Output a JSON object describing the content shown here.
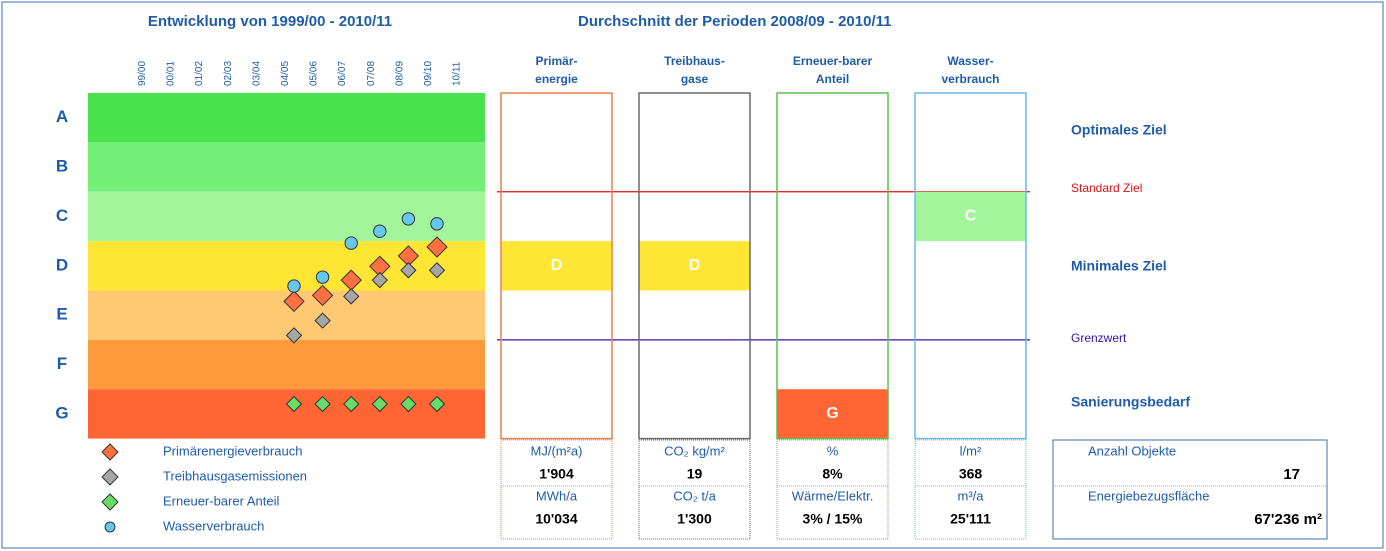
{
  "left_chart": {
    "type": "scatter",
    "title": "Entwicklung von 1999/00 - 2010/11",
    "categories": [
      "99/00",
      "00/01",
      "01/02",
      "02/03",
      "03/04",
      "04/05",
      "05/06",
      "06/07",
      "07/08",
      "08/09",
      "09/10",
      "10/11"
    ],
    "grades": [
      "A",
      "B",
      "C",
      "D",
      "E",
      "F",
      "G"
    ],
    "grade_colors": [
      "#49e24e",
      "#73ef78",
      "#a3f59b",
      "#ffe634",
      "#ffc873",
      "#ff9a3c",
      "#ff6633"
    ],
    "ylim": [
      0.5,
      7.5
    ],
    "series": [
      {
        "name": "Primärenergieverbrauch",
        "color": "#ff6f3f",
        "marker": "diamond",
        "values": [
          null,
          null,
          null,
          null,
          null,
          null,
          4.72,
          4.6,
          4.29,
          4.01,
          3.8,
          3.62
        ]
      },
      {
        "name": "Treibhausgasemissionen",
        "color": "#a6a6a6",
        "marker": "diamond",
        "values": [
          null,
          null,
          null,
          null,
          null,
          null,
          5.41,
          5.11,
          4.62,
          4.29,
          4.09,
          4.09
        ]
      },
      {
        "name": "Erneuer-barer Anteil",
        "color": "#66dd66",
        "marker": "diamond",
        "values": [
          null,
          null,
          null,
          null,
          null,
          null,
          6.8,
          6.8,
          6.8,
          6.8,
          6.8,
          6.8
        ]
      },
      {
        "name": "Wasserverbrauch",
        "color": "#66c8f0",
        "marker": "circle",
        "values": [
          null,
          null,
          null,
          null,
          null,
          null,
          4.41,
          4.23,
          3.54,
          3.3,
          3.05,
          3.15
        ]
      }
    ]
  },
  "averages": {
    "title": "Durchschnitt der Perioden 2008/09 - 2010/11",
    "columns": [
      {
        "header": [
          "Primär-",
          "energie"
        ],
        "rating": "D",
        "border": "#e8804f",
        "unit1": "MJ/(m²a)",
        "value1": "1'904",
        "unit2": "MWh/a",
        "value2": "10'034"
      },
      {
        "header": [
          "Treibhaus-",
          "gase"
        ],
        "rating": "D",
        "border": "#6b6b6b",
        "unit1": "CO₂ kg/m²",
        "value1": "19",
        "unit2": "CO₂ t/a",
        "value2": "1'300"
      },
      {
        "header": [
          "Erneuer-barer",
          "Anteil"
        ],
        "rating": "G",
        "border": "#5cbf4f",
        "unit1": "%",
        "value1": "8%",
        "unit2": "Wärme/Elektr.",
        "value2": "3% / 15%"
      },
      {
        "header": [
          "Wasser-",
          "verbrauch"
        ],
        "rating": "C",
        "border": "#6cb8ea",
        "unit1": "l/m²",
        "value1": "368",
        "unit2": "m³/a",
        "value2": "25'111"
      }
    ]
  },
  "targets": [
    "Optimales Ziel",
    "Standard Ziel",
    "Minimales Ziel",
    "Grenzwert",
    "Sanierungsbedarf"
  ],
  "summary": {
    "count_label": "Anzahl Objekte",
    "count": 17,
    "area_label": "Energiebezugsfläche",
    "area": "67'236 m²"
  }
}
